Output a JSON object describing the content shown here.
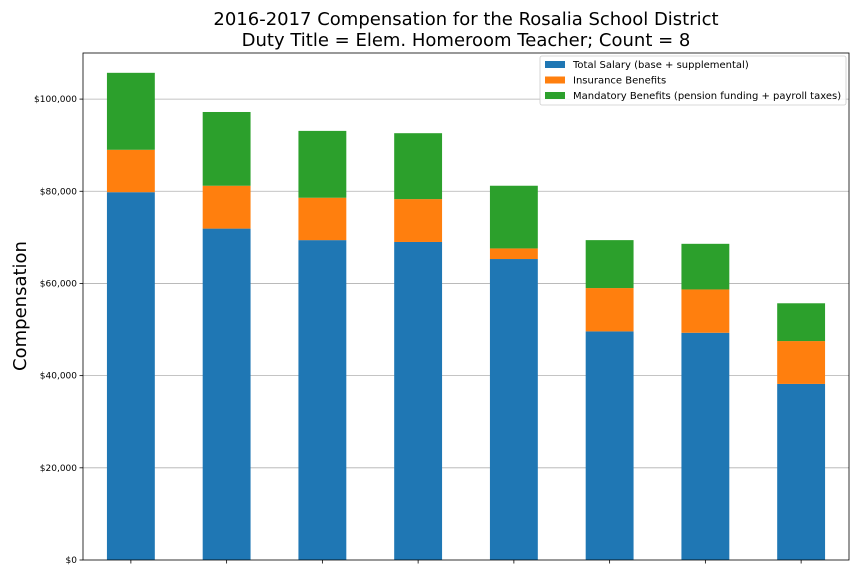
{
  "chart_data": {
    "type": "bar",
    "stacked": true,
    "title": "2016-2017 Compensation for the Rosalia School District",
    "subtitle": "Duty Title = Elem. Homeroom Teacher; Count = 8",
    "xlabel": "",
    "ylabel": "Compensation",
    "ylim": [
      0,
      110000
    ],
    "y_ticks": [
      0,
      20000,
      40000,
      60000,
      80000,
      100000
    ],
    "y_tick_labels": [
      "$0",
      "$20,000",
      "$40,000",
      "$60,000",
      "$80,000",
      "$100,000"
    ],
    "grid": "horizontal",
    "legend_position": "top-right",
    "categories": [
      "",
      "",
      "",
      "",
      "",
      "",
      "",
      ""
    ],
    "series": [
      {
        "name": "Total Salary (base + supplemental)",
        "color": "#1f77b4",
        "values": [
          79800,
          71900,
          69400,
          69000,
          65300,
          49600,
          49300,
          38200
        ]
      },
      {
        "name": "Insurance Benefits",
        "color": "#ff7f0e",
        "values": [
          9200,
          9300,
          9200,
          9300,
          2300,
          9400,
          9400,
          9300
        ]
      },
      {
        "name": "Mandatory Benefits (pension funding + payroll taxes)",
        "color": "#2ca02c",
        "values": [
          16700,
          16000,
          14500,
          14300,
          13600,
          10400,
          9900,
          8200
        ]
      }
    ]
  }
}
